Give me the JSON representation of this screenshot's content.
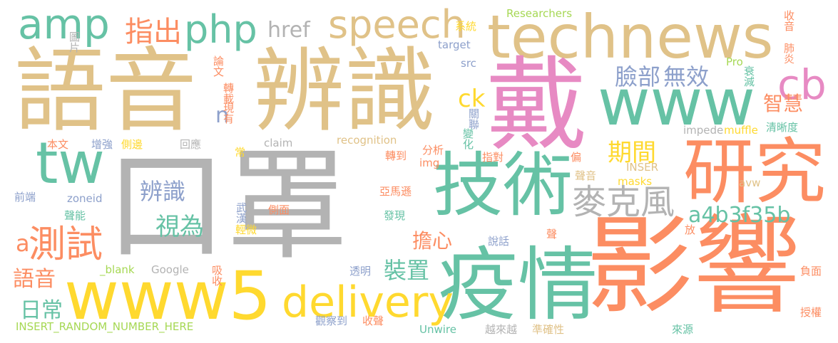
{
  "palette": {
    "tan": "#e0c288",
    "teal": "#66c2a5",
    "salmon": "#fc8d62",
    "pink": "#e78ac3",
    "periwinkle": "#8da0cb",
    "gray": "#b3b3b3",
    "yellow": "#ffd92f",
    "green": "#a6d854"
  },
  "words": [
    {
      "text": "口罩"
    },
    {
      "text": "語音"
    },
    {
      "text": "辨識"
    },
    {
      "text": "technews"
    },
    {
      "text": "戴"
    },
    {
      "text": "影響"
    },
    {
      "text": "疫情"
    },
    {
      "text": "技術"
    },
    {
      "text": "研究"
    },
    {
      "text": "www"
    },
    {
      "text": "www5"
    },
    {
      "text": "delivery"
    },
    {
      "text": "speech"
    },
    {
      "text": "amp"
    },
    {
      "text": "php"
    },
    {
      "text": "tw"
    },
    {
      "text": "cb"
    },
    {
      "text": "麥克風"
    },
    {
      "text": "指出"
    },
    {
      "text": "測試"
    },
    {
      "text": "a4b3f35b"
    },
    {
      "text": "臉部"
    },
    {
      "text": "無效"
    },
    {
      "text": "期間"
    },
    {
      "text": "智慧"
    },
    {
      "text": "擔心"
    },
    {
      "text": "裝置"
    },
    {
      "text": "辨識"
    },
    {
      "text": "視為"
    },
    {
      "text": "語音"
    },
    {
      "text": "日常"
    },
    {
      "text": "href"
    },
    {
      "text": "ck"
    },
    {
      "text": "n"
    },
    {
      "text": "a"
    },
    {
      "text": "Researchers"
    },
    {
      "text": "INSERT_RANDOM_NUMBER_HERE"
    },
    {
      "text": "recognition"
    },
    {
      "text": "Unwire"
    },
    {
      "text": "Google"
    },
    {
      "text": "_blank"
    },
    {
      "text": "impede"
    },
    {
      "text": "muffle"
    },
    {
      "text": "claim"
    },
    {
      "text": "target"
    },
    {
      "text": "src"
    },
    {
      "text": "img"
    },
    {
      "text": "zoneid"
    },
    {
      "text": "masks"
    },
    {
      "text": "INSER"
    },
    {
      "text": "Pro"
    },
    {
      "text": "avw"
    },
    {
      "text": "收音"
    },
    {
      "text": "肺炎"
    },
    {
      "text": "衰減"
    },
    {
      "text": "清晰度"
    },
    {
      "text": "系統"
    },
    {
      "text": "圖片"
    },
    {
      "text": "論文"
    },
    {
      "text": "轉載"
    },
    {
      "text": "現有"
    },
    {
      "text": "關聯"
    },
    {
      "text": "變化"
    },
    {
      "text": "本文"
    },
    {
      "text": "增強"
    },
    {
      "text": "側邊"
    },
    {
      "text": "回應"
    },
    {
      "text": "常"
    },
    {
      "text": "轉到"
    },
    {
      "text": "分析"
    },
    {
      "text": "指對"
    },
    {
      "text": "偏"
    },
    {
      "text": "聲音"
    },
    {
      "text": "前端"
    },
    {
      "text": "聲能"
    },
    {
      "text": "武漢"
    },
    {
      "text": "側面"
    },
    {
      "text": "亞馬遜"
    },
    {
      "text": "發現"
    },
    {
      "text": "輕微"
    },
    {
      "text": "說話"
    },
    {
      "text": "聲"
    },
    {
      "text": "放"
    },
    {
      "text": "吸收"
    },
    {
      "text": "透明"
    },
    {
      "text": "負面"
    },
    {
      "text": "觀察到"
    },
    {
      "text": "收聲"
    },
    {
      "text": "越來越"
    },
    {
      "text": "準確性"
    },
    {
      "text": "來源"
    },
    {
      "text": "授權"
    }
  ]
}
